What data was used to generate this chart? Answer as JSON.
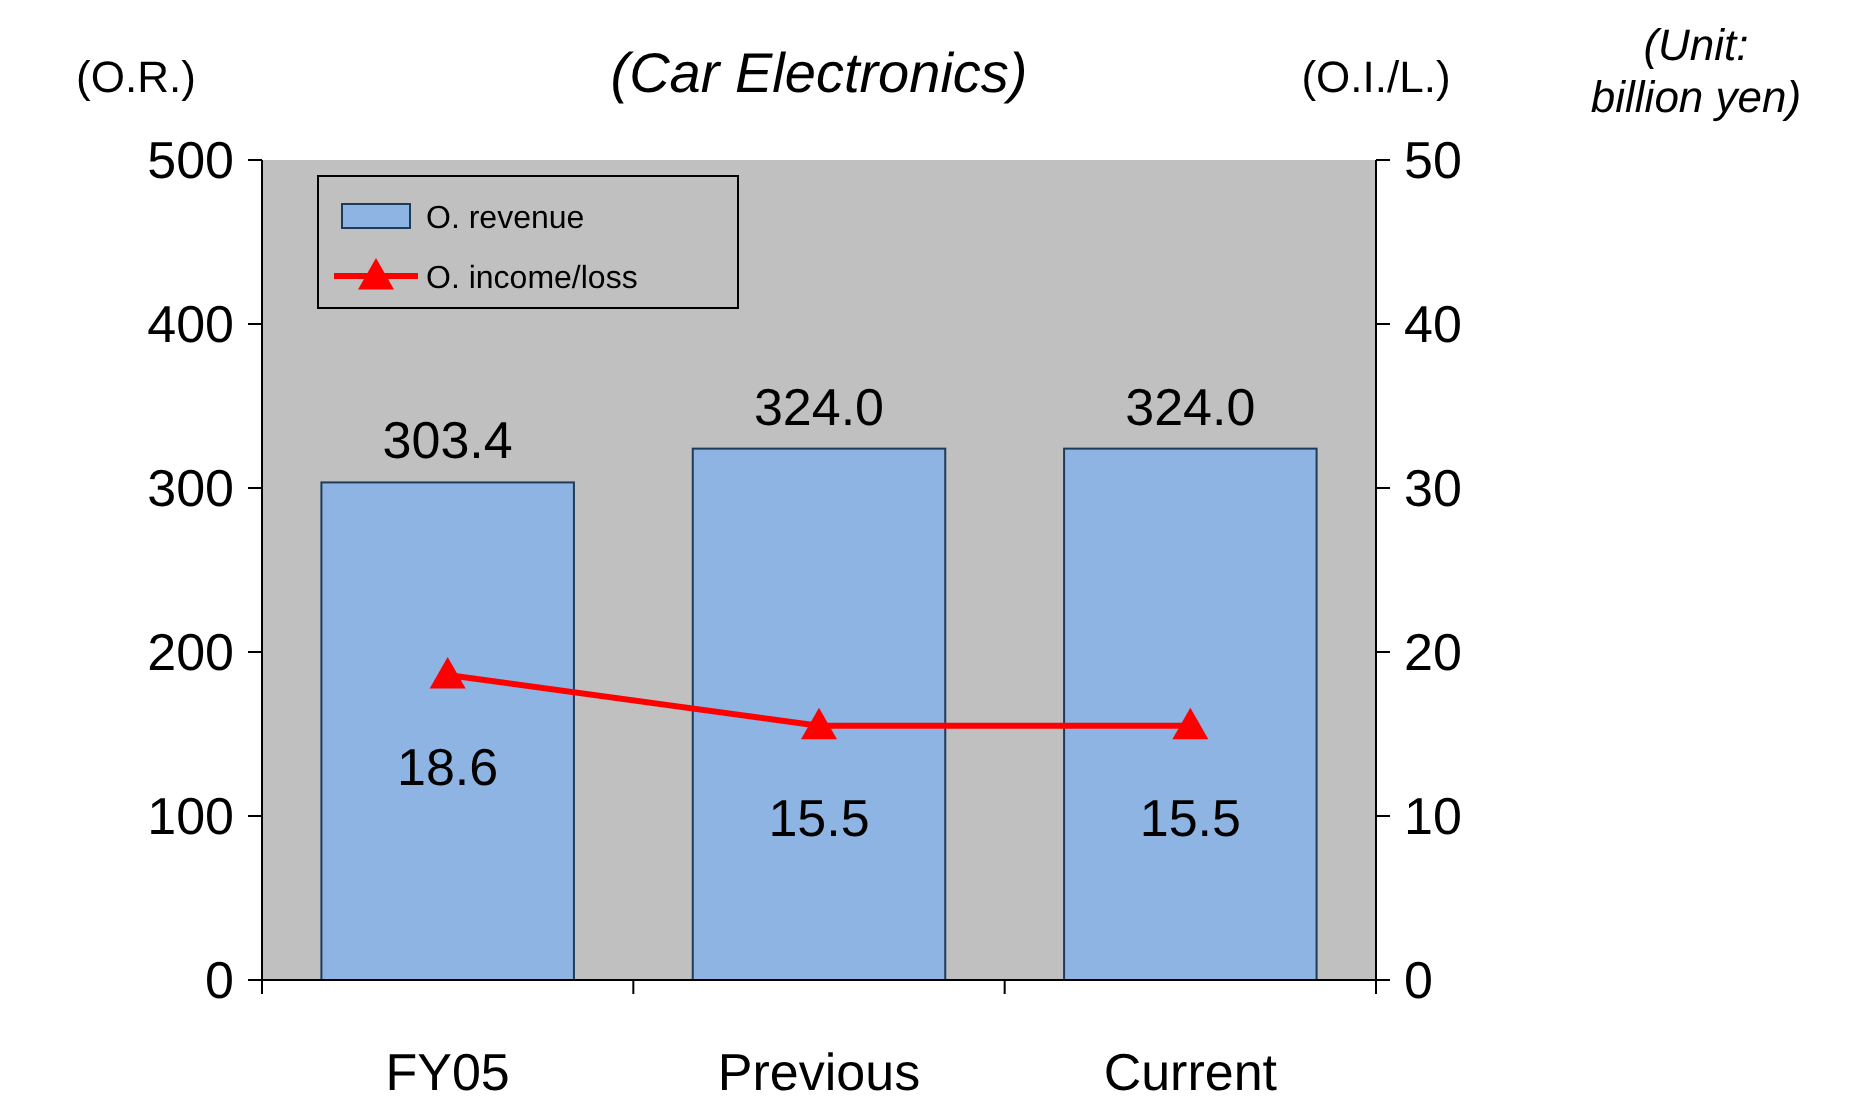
{
  "chart_data": {
    "type": "bar",
    "title": "(Car Electronics)",
    "ylabel": "(O.R.)",
    "y2label": "(O.I./L.)",
    "annotations": [
      "(Unit: billion yen)"
    ],
    "categories": [
      "FY05",
      "Previous",
      "Current"
    ],
    "series": [
      {
        "name": "O. revenue",
        "color": "#8db4e2",
        "values": [
          303.4,
          324.0,
          324.0
        ],
        "value_labels": [
          "303.4",
          "324.0",
          "324.0"
        ]
      },
      {
        "name": "O. income/loss",
        "type": "line",
        "axis": "y2",
        "color": "#ff0000",
        "values": [
          18.6,
          15.5,
          15.5
        ],
        "value_labels": [
          "18.6",
          "15.5",
          "15.5"
        ],
        "marker": "triangle"
      }
    ],
    "ylim": [
      0,
      500
    ],
    "yticks": [
      0,
      100,
      200,
      300,
      400,
      500
    ],
    "y2lim": [
      0,
      50
    ],
    "y2ticks": [
      0,
      10,
      20,
      30,
      40,
      50
    ],
    "grid": false,
    "legend": "top left"
  }
}
